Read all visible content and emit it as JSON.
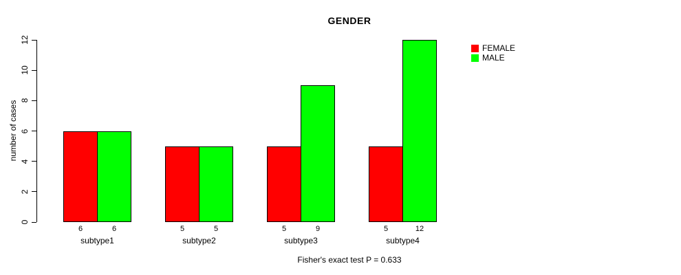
{
  "chart_data": {
    "type": "bar",
    "title": "GENDER",
    "ylabel": "number of cases",
    "xlabel": "",
    "categories": [
      "subtype1",
      "subtype2",
      "subtype3",
      "subtype4"
    ],
    "series": [
      {
        "name": "FEMALE",
        "color": "#ff0000",
        "values": [
          6,
          5,
          5,
          5
        ]
      },
      {
        "name": "MALE",
        "color": "#00ff00",
        "values": [
          6,
          5,
          9,
          12
        ]
      }
    ],
    "bar_value_labels": [
      [
        "6",
        "5",
        "5",
        "5"
      ],
      [
        "6",
        "5",
        "9",
        "12"
      ]
    ],
    "ylim": [
      0,
      12
    ],
    "yticks": [
      0,
      2,
      4,
      6,
      8,
      10,
      12
    ],
    "grid": false,
    "legend_position": "right-outside",
    "axis_color": "#000000",
    "caption": "Fisher's exact test P = 0.633"
  }
}
